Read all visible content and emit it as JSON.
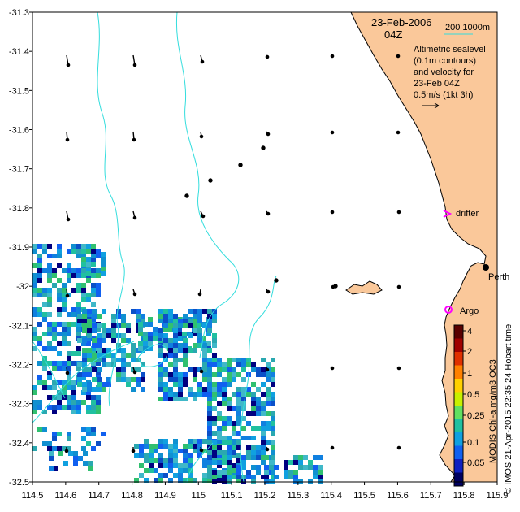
{
  "header": {
    "date": "23-Feb-2006",
    "time": "04Z",
    "scale_label": "200 1000m"
  },
  "legend": {
    "lines": [
      "Altimetric sealevel",
      "(0.1m contours)",
      "and velocity for",
      "23-Feb 04Z",
      "0.5m/s (1kt 3h)"
    ]
  },
  "places": {
    "drifter": "drifter",
    "argo": "Argo",
    "perth": "Perth"
  },
  "side_label": "MODIS Chl-a mg/m3 OC3",
  "credit": "© IMOS 21-Apr-2015 22:35:24 Hobart time",
  "colorbar": {
    "ticks": [
      "4",
      "2",
      "1",
      "0.5",
      "0.25",
      "0.1",
      "0.05"
    ],
    "colors": [
      "#5a0000",
      "#a00000",
      "#e03000",
      "#ff8000",
      "#ffd000",
      "#c8f000",
      "#60e060",
      "#20c0a0",
      "#10a0e0",
      "#1060f0",
      "#1020c0",
      "#000060"
    ]
  },
  "axes": {
    "x_ticks": [
      "114.5",
      "114.6",
      "114.7",
      "114.8",
      "114.9",
      "115",
      "115.1",
      "115.2",
      "115.3",
      "115.4",
      "115.5",
      "115.6",
      "115.7",
      "115.8",
      "115.9"
    ],
    "y_ticks": [
      "-31.3",
      "-31.4",
      "-31.5",
      "-31.6",
      "-31.7",
      "-31.8",
      "-31.9",
      "-32",
      "-32.1",
      "-32.2",
      "-32.3",
      "-32.4",
      "-32.5"
    ],
    "lon_range": [
      114.5,
      115.9
    ],
    "lat_range": [
      -32.5,
      -31.3
    ]
  },
  "colors": {
    "land": "#fac89a",
    "contour": "#33dddd",
    "drifter_marker": "#ff00ff",
    "argo_marker": "#ff00ff"
  }
}
